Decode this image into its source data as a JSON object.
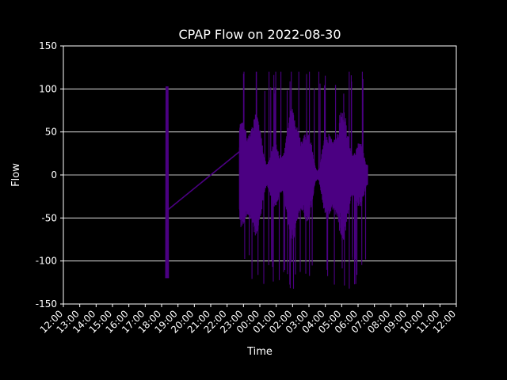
{
  "chart_data": {
    "type": "line",
    "title": "CPAP Flow on 2022-08-30",
    "xlabel": "Time",
    "ylabel": "Flow",
    "ylim": [
      -150,
      150
    ],
    "yticks": [
      -150,
      -100,
      -50,
      0,
      50,
      100,
      150
    ],
    "xticks": [
      "12:00",
      "13:00",
      "14:00",
      "15:00",
      "16:00",
      "17:00",
      "18:00",
      "19:00",
      "20:00",
      "21:00",
      "22:00",
      "23:00",
      "00:00",
      "01:00",
      "02:00",
      "03:00",
      "04:00",
      "05:00",
      "06:00",
      "07:00",
      "08:00",
      "09:00",
      "10:00",
      "11:00",
      "12:00"
    ],
    "grid": "horizontal",
    "colors": {
      "background": "#000000",
      "foreground": "#ffffff",
      "line": "#4b0082"
    },
    "series": [
      {
        "segments": [
          {
            "x": [
              "2022-08-30 18:15",
              "2022-08-30 18:25"
            ],
            "y": [
              -120,
              103
            ]
          },
          {
            "x": [
              "2022-08-30 18:25",
              "2022-08-30 22:45"
            ],
            "y": [
              -40,
              27
            ]
          },
          {
            "x": [
              "2022-08-30 22:45",
              "2022-08-31 06:35"
            ],
            "y": [
              -133,
              120
            ]
          }
        ]
      }
    ]
  }
}
